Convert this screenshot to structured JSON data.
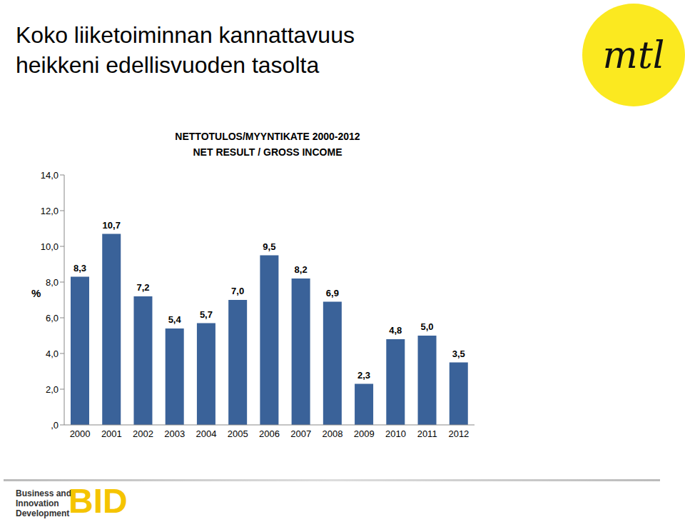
{
  "slide_title": [
    "Koko liiketoiminnan kannattavuus",
    "heikkeni edellisvuoden tasolta"
  ],
  "logo": "mtl",
  "footer": {
    "lines": [
      "Business and",
      "Innovation",
      "Development"
    ],
    "logo": "BID"
  },
  "chart_data": {
    "type": "bar",
    "title": "NETTOTULOS/MYYNTIKATE 2000-2012",
    "subtitle": "NET RESULT / GROSS INCOME",
    "ylabel": "%",
    "categories": [
      "2000",
      "2001",
      "2002",
      "2003",
      "2004",
      "2005",
      "2006",
      "2007",
      "2008",
      "2009",
      "2010",
      "2011",
      "2012"
    ],
    "values": [
      8.3,
      10.7,
      7.2,
      5.4,
      5.7,
      7.0,
      9.5,
      8.2,
      6.9,
      2.3,
      4.8,
      5.0,
      3.5
    ],
    "value_labels": [
      "8,3",
      "10,7",
      "7,2",
      "5,4",
      "5,7",
      "7,0",
      "9,5",
      "8,2",
      "6,9",
      "2,3",
      "4,8",
      "5,0",
      "3,5"
    ],
    "data_labels": true,
    "color": "#3a6299",
    "ylim": [
      0,
      14
    ],
    "yticks": [
      {
        "value": 0,
        "label": ",0"
      },
      {
        "value": 2,
        "label": "2,0"
      },
      {
        "value": 4,
        "label": "4,0"
      },
      {
        "value": 6,
        "label": "6,0"
      },
      {
        "value": 8,
        "label": "8,0"
      },
      {
        "value": 10,
        "label": "10,0"
      },
      {
        "value": 12,
        "label": "12,0"
      },
      {
        "value": 14,
        "label": "14,0"
      }
    ],
    "grid": false
  }
}
